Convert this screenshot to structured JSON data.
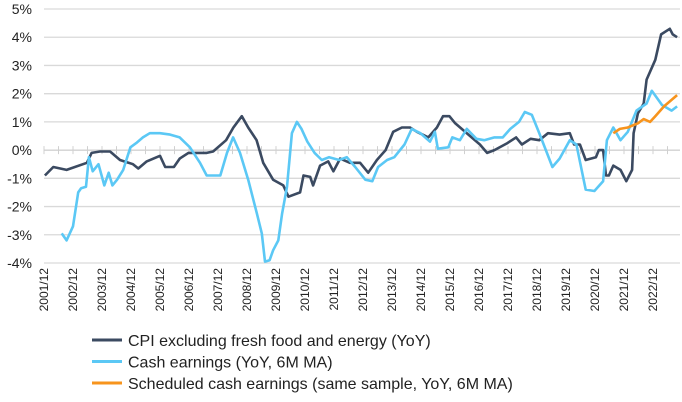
{
  "chart_data": {
    "type": "line",
    "title": "",
    "xlabel": "",
    "ylabel": "",
    "ylim": [
      -4,
      5
    ],
    "xlim": [
      2001.92,
      2023.75
    ],
    "y_ticks": [
      "5%",
      "4%",
      "3%",
      "2%",
      "1%",
      "0%",
      "-1%",
      "-2%",
      "-3%",
      "-4%"
    ],
    "y_tick_values": [
      5,
      4,
      3,
      2,
      1,
      0,
      -1,
      -2,
      -3,
      -4
    ],
    "x_ticks": [
      "2001/12",
      "2002/12",
      "2003/12",
      "2004/12",
      "2005/12",
      "2006/12",
      "2007/12",
      "2008/12",
      "2009/12",
      "2010/12",
      "2011/12",
      "2012/12",
      "2013/12",
      "2014/12",
      "2015/12",
      "2016/12",
      "2017/12",
      "2018/12",
      "2019/12",
      "2020/12",
      "2021/12",
      "2022/12"
    ],
    "grid": true,
    "legend_position": "bottom",
    "series": [
      {
        "name": "CPI excluding fresh food and energy (YoY)",
        "color": "#3b4a61",
        "points": [
          [
            2001.95,
            -0.9
          ],
          [
            2002.24,
            -0.6
          ],
          [
            2002.7,
            -0.7
          ],
          [
            2003.4,
            -0.45
          ],
          [
            2003.56,
            -0.1
          ],
          [
            2003.85,
            -0.05
          ],
          [
            2004.2,
            -0.05
          ],
          [
            2004.54,
            -0.35
          ],
          [
            2004.99,
            -0.5
          ],
          [
            2005.17,
            -0.65
          ],
          [
            2005.46,
            -0.4
          ],
          [
            2005.92,
            -0.2
          ],
          [
            2006.1,
            -0.6
          ],
          [
            2006.4,
            -0.6
          ],
          [
            2006.6,
            -0.3
          ],
          [
            2006.9,
            -0.1
          ],
          [
            2007.53,
            -0.1
          ],
          [
            2007.75,
            -0.05
          ],
          [
            2008.2,
            0.35
          ],
          [
            2008.45,
            0.8
          ],
          [
            2008.74,
            1.2
          ],
          [
            2008.96,
            0.8
          ],
          [
            2009.25,
            0.35
          ],
          [
            2009.48,
            -0.45
          ],
          [
            2009.82,
            -1.05
          ],
          [
            2010.17,
            -1.25
          ],
          [
            2010.35,
            -1.65
          ],
          [
            2010.75,
            -1.5
          ],
          [
            2010.87,
            -0.9
          ],
          [
            2011.1,
            -0.95
          ],
          [
            2011.2,
            -1.25
          ],
          [
            2011.44,
            -0.55
          ],
          [
            2011.72,
            -0.4
          ],
          [
            2011.9,
            -0.75
          ],
          [
            2012.13,
            -0.3
          ],
          [
            2012.47,
            -0.45
          ],
          [
            2012.82,
            -0.45
          ],
          [
            2013.1,
            -0.8
          ],
          [
            2013.4,
            -0.35
          ],
          [
            2013.7,
            0
          ],
          [
            2013.96,
            0.65
          ],
          [
            2014.26,
            0.8
          ],
          [
            2014.54,
            0.8
          ],
          [
            2014.78,
            0.65
          ],
          [
            2015.17,
            0.45
          ],
          [
            2015.47,
            0.8
          ],
          [
            2015.68,
            1.2
          ],
          [
            2015.9,
            1.2
          ],
          [
            2016.1,
            0.95
          ],
          [
            2016.5,
            0.6
          ],
          [
            2016.95,
            0.2
          ],
          [
            2017.2,
            -0.1
          ],
          [
            2017.45,
            0
          ],
          [
            2017.9,
            0.25
          ],
          [
            2018.2,
            0.45
          ],
          [
            2018.4,
            0.2
          ],
          [
            2018.7,
            0.4
          ],
          [
            2019.0,
            0.35
          ],
          [
            2019.3,
            0.6
          ],
          [
            2019.7,
            0.55
          ],
          [
            2020.05,
            0.6
          ],
          [
            2020.2,
            0.2
          ],
          [
            2020.4,
            0.2
          ],
          [
            2020.6,
            -0.35
          ],
          [
            2020.95,
            -0.25
          ],
          [
            2021.05,
            0
          ],
          [
            2021.2,
            0
          ],
          [
            2021.3,
            -0.9
          ],
          [
            2021.4,
            -0.9
          ],
          [
            2021.55,
            -0.55
          ],
          [
            2021.8,
            -0.7
          ],
          [
            2022.0,
            -1.1
          ],
          [
            2022.2,
            -0.7
          ],
          [
            2022.25,
            0.6
          ],
          [
            2022.4,
            1.3
          ],
          [
            2022.6,
            1.65
          ],
          [
            2022.7,
            2.5
          ],
          [
            2023.0,
            3.2
          ],
          [
            2023.2,
            4.1
          ],
          [
            2023.5,
            4.3
          ],
          [
            2023.6,
            4.1
          ],
          [
            2023.75,
            4.0
          ]
        ]
      },
      {
        "name": "Cash earnings (YoY, 6M MA)",
        "color": "#5bc8f5",
        "points": [
          [
            2002.53,
            -2.95
          ],
          [
            2002.7,
            -3.2
          ],
          [
            2002.92,
            -2.7
          ],
          [
            2003.1,
            -1.5
          ],
          [
            2003.2,
            -1.35
          ],
          [
            2003.37,
            -1.3
          ],
          [
            2003.47,
            -0.25
          ],
          [
            2003.6,
            -0.75
          ],
          [
            2003.8,
            -0.5
          ],
          [
            2004.0,
            -1.25
          ],
          [
            2004.15,
            -0.8
          ],
          [
            2004.28,
            -1.25
          ],
          [
            2004.44,
            -1.05
          ],
          [
            2004.65,
            -0.7
          ],
          [
            2004.9,
            0.1
          ],
          [
            2005.1,
            0.25
          ],
          [
            2005.33,
            0.45
          ],
          [
            2005.57,
            0.6
          ],
          [
            2005.92,
            0.6
          ],
          [
            2006.27,
            0.55
          ],
          [
            2006.6,
            0.45
          ],
          [
            2006.95,
            0.1
          ],
          [
            2007.3,
            -0.45
          ],
          [
            2007.53,
            -0.9
          ],
          [
            2008.0,
            -0.9
          ],
          [
            2008.23,
            -0.1
          ],
          [
            2008.44,
            0.45
          ],
          [
            2008.68,
            -0.1
          ],
          [
            2008.96,
            -1.05
          ],
          [
            2009.26,
            -2.25
          ],
          [
            2009.43,
            -2.95
          ],
          [
            2009.54,
            -3.95
          ],
          [
            2009.7,
            -3.9
          ],
          [
            2009.82,
            -3.55
          ],
          [
            2010.0,
            -3.2
          ],
          [
            2010.13,
            -2.25
          ],
          [
            2010.3,
            -1.3
          ],
          [
            2010.47,
            0.6
          ],
          [
            2010.64,
            1.0
          ],
          [
            2010.8,
            0.75
          ],
          [
            2011.0,
            0.3
          ],
          [
            2011.25,
            -0.1
          ],
          [
            2011.5,
            -0.35
          ],
          [
            2011.75,
            -0.25
          ],
          [
            2012.1,
            -0.35
          ],
          [
            2012.36,
            -0.25
          ],
          [
            2012.65,
            -0.6
          ],
          [
            2013.0,
            -1.05
          ],
          [
            2013.24,
            -1.1
          ],
          [
            2013.44,
            -0.6
          ],
          [
            2013.75,
            -0.35
          ],
          [
            2014.0,
            -0.25
          ],
          [
            2014.35,
            0.2
          ],
          [
            2014.6,
            0.75
          ],
          [
            2014.9,
            0.6
          ],
          [
            2015.23,
            0.3
          ],
          [
            2015.4,
            0.65
          ],
          [
            2015.5,
            0.05
          ],
          [
            2015.86,
            0.1
          ],
          [
            2016.0,
            0.45
          ],
          [
            2016.26,
            0.35
          ],
          [
            2016.5,
            0.75
          ],
          [
            2016.83,
            0.4
          ],
          [
            2017.1,
            0.35
          ],
          [
            2017.45,
            0.45
          ],
          [
            2017.74,
            0.45
          ],
          [
            2018.0,
            0.75
          ],
          [
            2018.3,
            1.0
          ],
          [
            2018.5,
            1.35
          ],
          [
            2018.74,
            1.25
          ],
          [
            2019.0,
            0.6
          ],
          [
            2019.45,
            -0.6
          ],
          [
            2019.7,
            -0.3
          ],
          [
            2020.05,
            0.35
          ],
          [
            2020.28,
            0.2
          ],
          [
            2020.6,
            -1.4
          ],
          [
            2020.9,
            -1.45
          ],
          [
            2021.2,
            -1.1
          ],
          [
            2021.33,
            0.35
          ],
          [
            2021.55,
            0.8
          ],
          [
            2021.8,
            0.35
          ],
          [
            2022.05,
            0.65
          ],
          [
            2022.35,
            1.4
          ],
          [
            2022.7,
            1.65
          ],
          [
            2022.88,
            2.1
          ],
          [
            2023.23,
            1.6
          ],
          [
            2023.56,
            1.4
          ],
          [
            2023.75,
            1.55
          ]
        ]
      },
      {
        "name": "Scheduled cash earnings (same sample, YoY, 6M MA)",
        "color": "#f7941d",
        "points": [
          [
            2021.55,
            0.6
          ],
          [
            2021.78,
            0.75
          ],
          [
            2022.05,
            0.8
          ],
          [
            2022.4,
            0.95
          ],
          [
            2022.6,
            1.1
          ],
          [
            2022.82,
            1.0
          ],
          [
            2023.0,
            1.2
          ],
          [
            2023.3,
            1.55
          ],
          [
            2023.75,
            1.95
          ]
        ]
      }
    ]
  }
}
